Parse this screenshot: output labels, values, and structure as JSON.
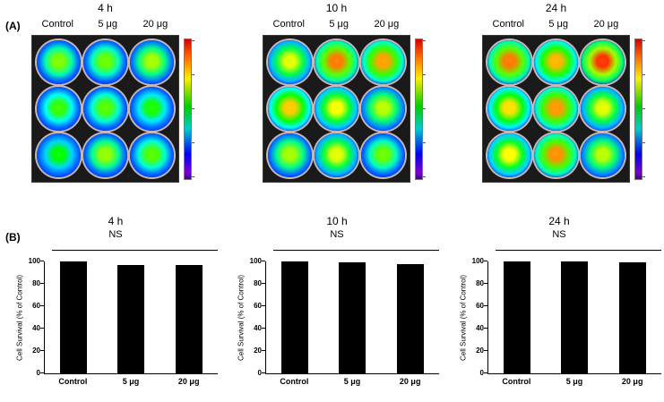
{
  "figure": {
    "panel_a_label": "(A)",
    "panel_b_label": "(B)"
  },
  "plates": [
    {
      "time": "4 h",
      "col_labels": [
        "Control",
        "5 μg",
        "20 μg"
      ],
      "wells": [
        0.62,
        0.6,
        0.66,
        0.55,
        0.58,
        0.52,
        0.5,
        0.64,
        0.58
      ]
    },
    {
      "time": "10 h",
      "col_labels": [
        "Control",
        "5 μg",
        "20 μg"
      ],
      "wells": [
        0.72,
        0.88,
        0.84,
        0.8,
        0.74,
        0.68,
        0.66,
        0.72,
        0.6
      ]
    },
    {
      "time": "24 h",
      "col_labels": [
        "Control",
        "5 μg",
        "20 μg"
      ],
      "wells": [
        0.88,
        0.82,
        0.95,
        0.78,
        0.85,
        0.72,
        0.75,
        0.86,
        0.68
      ]
    }
  ],
  "chart_data": [
    {
      "type": "bar",
      "title": "4 h",
      "annotation": "NS",
      "ylabel": "Cell Survival (% of Control)",
      "categories": [
        "Control",
        "5 μg",
        "20 μg"
      ],
      "values": [
        100,
        96.5,
        97
      ],
      "ylim": [
        0,
        100
      ],
      "yticks": [
        0,
        20,
        40,
        60,
        80,
        100
      ],
      "bar_color": "#000000"
    },
    {
      "type": "bar",
      "title": "10 h",
      "annotation": "NS",
      "ylabel": "Cell Survival (% of Control)",
      "categories": [
        "Control",
        "5 μg",
        "20 μg"
      ],
      "values": [
        100,
        99,
        98
      ],
      "ylim": [
        0,
        100
      ],
      "yticks": [
        0,
        20,
        40,
        60,
        80,
        100
      ],
      "bar_color": "#000000"
    },
    {
      "type": "bar",
      "title": "24 h",
      "annotation": "NS",
      "ylabel": "Cell Survival (% of Control)",
      "categories": [
        "Control",
        "5 μg",
        "20 μg"
      ],
      "values": [
        100,
        100,
        99
      ],
      "ylim": [
        0,
        100
      ],
      "yticks": [
        0,
        20,
        40,
        60,
        80,
        100
      ],
      "bar_color": "#000000"
    }
  ]
}
